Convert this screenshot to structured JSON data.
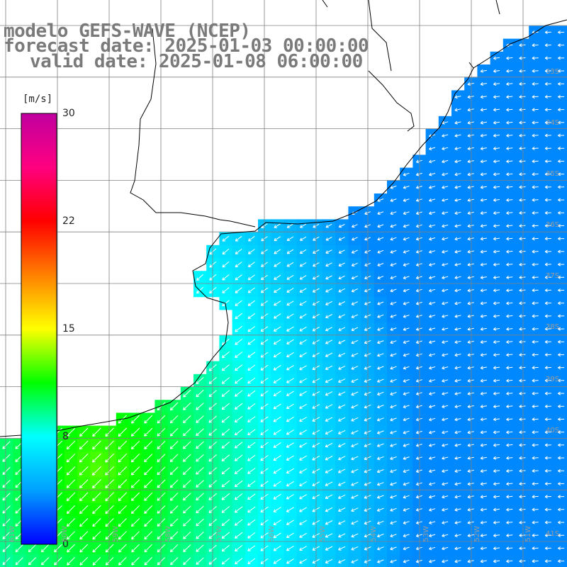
{
  "title": {
    "line1": "modelo GEFS-WAVE (NCEP)",
    "line2": "forecast date: 2025-01-03 00:00:00",
    "line3": "valid date: 2025-01-08 06:00:00"
  },
  "colorbar": {
    "unit": "[m/s]",
    "ticks": [
      "30",
      "22",
      "15",
      "8",
      "0"
    ],
    "min": 0,
    "max": 30,
    "colors": [
      "#0000ff",
      "#00a0ff",
      "#00ffff",
      "#00ff00",
      "#ffff00",
      "#ff8000",
      "#ff0000",
      "#ff0080",
      "#c000a0"
    ]
  },
  "latitude_labels": [
    "33S",
    "34S",
    "35S",
    "36S",
    "37S",
    "38S",
    "39S",
    "40S",
    "41S"
  ],
  "longitude_labels": [
    "61W",
    "60W",
    "59W",
    "58W",
    "57W",
    "56W",
    "55W",
    "54W",
    "53W",
    "52W",
    "51W"
  ],
  "wind_field": {
    "variable": "wind speed",
    "unit": "m/s",
    "range_shown": [
      3,
      13
    ],
    "direction": "from north-east near coast turning easterly offshore"
  },
  "colors": {
    "land": "#ffffff",
    "coast": "#000000",
    "grid": "#808080",
    "title": "#7a7a7a"
  }
}
